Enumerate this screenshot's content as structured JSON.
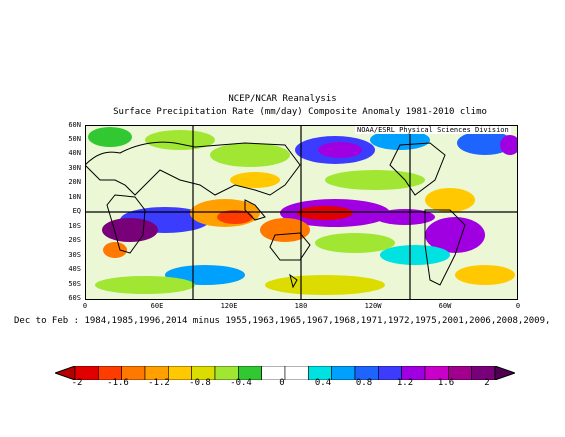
{
  "title_line1": "NCEP/NCAR Reanalysis",
  "title_line2": "Surface Precipitation Rate (mm/day) Composite Anomaly 1981-2010 climo",
  "credit": "NOAA/ESRL Physical Sciences Division",
  "lat_labels": [
    "60N",
    "50N",
    "40N",
    "30N",
    "20N",
    "10N",
    "EQ",
    "10S",
    "20S",
    "30S",
    "40S",
    "50S",
    "60S"
  ],
  "lon_labels": [
    "0",
    "60E",
    "120E",
    "180",
    "120W",
    "60W",
    "0"
  ],
  "caption": "Dec to Feb : 1984,1985,1996,2014 minus 1955,1963,1965,1967,1968,1971,1972,1975,2001,2006,2008,2009,",
  "colorbar": {
    "labels": [
      "-2",
      "-1.6",
      "-1.2",
      "-0.8",
      "-0.4",
      "0",
      "0.4",
      "0.8",
      "1.2",
      "1.6",
      "2"
    ],
    "colors": [
      "#e10000",
      "#ff3c00",
      "#ff7800",
      "#ffa000",
      "#ffc800",
      "#dcdc00",
      "#a0e632",
      "#32c832",
      "#ffffff",
      "#ffffff",
      "#00e1e1",
      "#00a0ff",
      "#1e64ff",
      "#3c3cff",
      "#a000e1",
      "#c800c8",
      "#a0008c",
      "#780078"
    ]
  },
  "map_style": {
    "sea_colour": "#ffffff",
    "coast_colour": "#000000"
  }
}
